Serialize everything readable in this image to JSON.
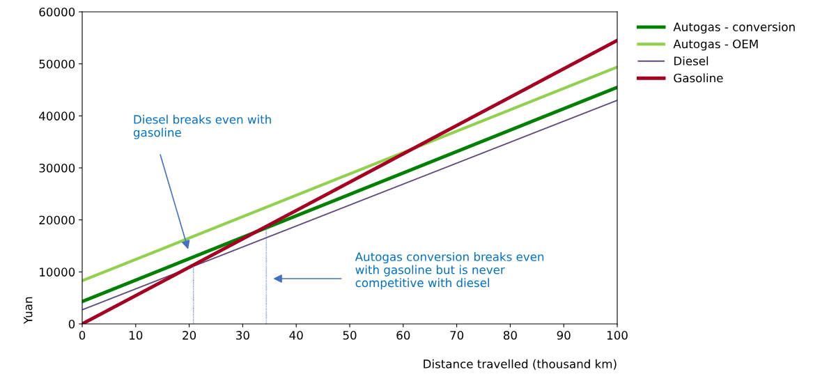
{
  "chart_data": {
    "type": "line",
    "xlabel": "Distance travelled (thousand km)",
    "ylabel": "Yuan",
    "xlim": [
      0,
      100
    ],
    "xticks": [
      0,
      10,
      20,
      30,
      40,
      50,
      60,
      70,
      80,
      90,
      100
    ],
    "ylim": [
      0,
      60000
    ],
    "yticks": [
      0,
      10000,
      20000,
      30000,
      40000,
      50000,
      60000
    ],
    "grid": false,
    "legend": "right",
    "marker": "none",
    "series": [
      {
        "name": "Autogas - conversion",
        "color": "#008000",
        "x": [
          0,
          100
        ],
        "values": [
          4300,
          45500
        ]
      },
      {
        "name": "Autogas - OEM",
        "color": "#92d050",
        "x": [
          0,
          100
        ],
        "values": [
          8300,
          49400
        ]
      },
      {
        "name": "Diesel",
        "color": "#604a7b",
        "x": [
          0,
          100
        ],
        "values": [
          2700,
          43000
        ]
      },
      {
        "name": "Gasoline",
        "color": "#a50021",
        "x": [
          0,
          100
        ],
        "values": [
          0,
          54500
        ]
      },
      {
        "color": "#4472c4",
        "line_style": "dotted",
        "x": [
          20.8,
          20.8
        ],
        "values": [
          0,
          11100
        ]
      },
      {
        "color": "#4472c4",
        "line_style": "dotted",
        "x": [
          34.4,
          34.4
        ],
        "values": [
          0,
          18300
        ]
      }
    ],
    "annotations": [
      "Diesel breaks even with\ngasoline",
      "Autogas conversion breaks even\nwith gasoline but is never\ncompetitive with diesel"
    ]
  }
}
